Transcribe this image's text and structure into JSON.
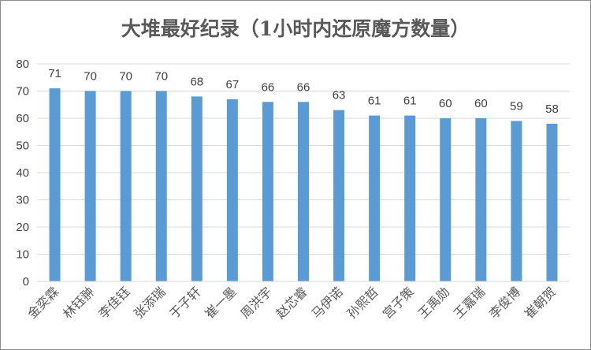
{
  "chart_data": {
    "type": "bar",
    "title": "大堆最好纪录（1小时内还原魔方数量）",
    "xlabel": "",
    "ylabel": "",
    "categories": [
      "金奕霖",
      "林钰翀",
      "李佳钰",
      "张添瑞",
      "于子轩",
      "崔一墨",
      "周洪宇",
      "赵芯睿",
      "马伊诺",
      "孙熙哲",
      "宫子策",
      "王禹勋",
      "王嘉瑞",
      "李俊博",
      "崔朝贺"
    ],
    "values": [
      71,
      70,
      70,
      70,
      68,
      67,
      66,
      66,
      63,
      61,
      61,
      60,
      60,
      59,
      58
    ],
    "ylim": [
      0,
      80
    ],
    "yticks": [
      0,
      10,
      20,
      30,
      40,
      50,
      60,
      70,
      80
    ],
    "grid": true,
    "legend": "none",
    "bar_color": "#5b9bd5",
    "data_labels": true
  }
}
